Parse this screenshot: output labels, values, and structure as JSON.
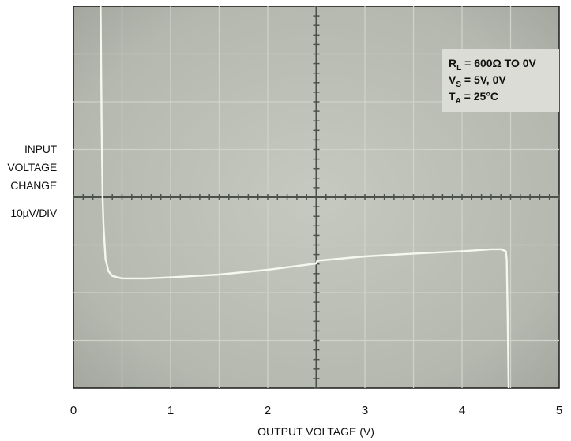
{
  "chart_data": {
    "type": "line",
    "title": "",
    "ylabel_lines": [
      "INPUT",
      "VOLTAGE",
      "CHANGE"
    ],
    "yscale_label": "10µV/DIV",
    "xlabel": "OUTPUT VOLTAGE (V)",
    "xlim": [
      0,
      5
    ],
    "ylim": [
      -40,
      40
    ],
    "x_ticks": [
      "0",
      "1",
      "2",
      "3",
      "4",
      "5"
    ],
    "grid": true,
    "legend": "top-right",
    "annotation": {
      "r_main": "R",
      "r_sub": "L",
      "r_value": " = 600Ω TO 0V",
      "v_main": "V",
      "v_sub": "S",
      "v_value": " = 5V, 0V",
      "t_main": "T",
      "t_sub": "A",
      "t_value": " = 25°C"
    },
    "series": [
      {
        "x": [
          0.28,
          0.29,
          0.3,
          0.31,
          0.33,
          0.36,
          0.4,
          0.5,
          0.75,
          1.0,
          1.5,
          2.0,
          2.5,
          2.51,
          3.0,
          3.5,
          4.0,
          4.3,
          4.4,
          4.45,
          4.46,
          4.47,
          4.48
        ],
        "y": [
          40,
          15,
          0,
          -6,
          -13,
          -15.5,
          -16.5,
          -17,
          -17,
          -16.8,
          -16.2,
          -15.2,
          -13.9,
          -13.3,
          -12.4,
          -11.8,
          -11.3,
          -10.9,
          -10.9,
          -11.3,
          -13,
          -25,
          -40
        ]
      }
    ],
    "colors": {
      "screen": "#b8bbb2",
      "trace": "#f6f7ef",
      "grid": "#cfd2c8",
      "axis": "#4c504a",
      "annotation_bg": "#dadcd5"
    }
  }
}
